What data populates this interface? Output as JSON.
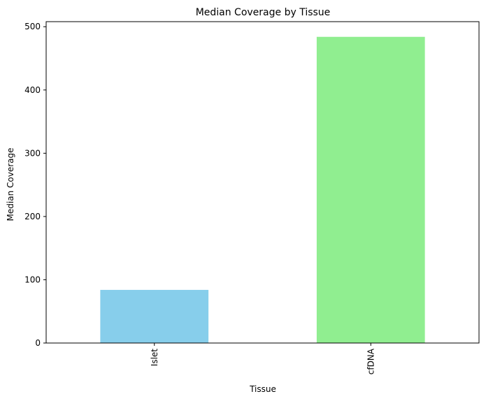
{
  "chart_data": {
    "type": "bar",
    "title": "Median Coverage by Tissue",
    "xlabel": "Tissue",
    "ylabel": "Median Coverage",
    "categories": [
      "Islet",
      "cfDNA"
    ],
    "values": [
      84,
      484
    ],
    "colors": [
      "#87ceeb",
      "#90ee90"
    ],
    "ylim": [
      0,
      508
    ],
    "yticks": [
      0,
      100,
      200,
      300,
      400,
      500
    ],
    "grid": false,
    "legend": false,
    "xtick_rotation": "vertical"
  }
}
